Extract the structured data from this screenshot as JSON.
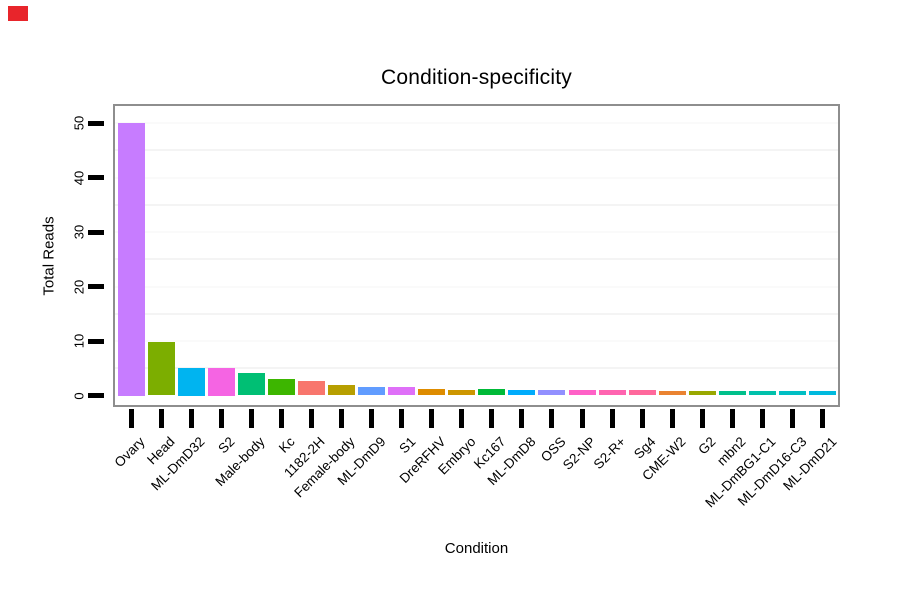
{
  "marker": {
    "name": "red-marker",
    "color": "#e8252b"
  },
  "chart_data": {
    "type": "bar",
    "title": "Condition-specificity",
    "xlabel": "Condition",
    "ylabel": "Total Reads",
    "ylim": [
      0,
      53
    ],
    "y_ticks": [
      0,
      10,
      20,
      30,
      40,
      50
    ],
    "minor_gridlines": [
      5,
      15,
      25,
      35,
      45
    ],
    "grid": "very faint horizontal gridlines on white panel",
    "legend": "none",
    "panel_border_color": "#8e8e8e",
    "categories": [
      "Ovary",
      "Head",
      "ML-DmD32",
      "S2",
      "Male-body",
      "Kc",
      "1182-2H",
      "Female-body",
      "ML-DmD9",
      "S1",
      "DreRFHV",
      "Embryo",
      "Kc167",
      "ML-DmD8",
      "OSS",
      "S2-NP",
      "S2-R+",
      "Sg4",
      "CME-W2",
      "G2",
      "mbn2",
      "ML-DmBG1-C1",
      "ML-DmD16-C3",
      "ML-DmD21"
    ],
    "values": [
      50,
      9.8,
      5.0,
      5.0,
      4.2,
      3.0,
      2.6,
      1.9,
      1.6,
      1.6,
      1.2,
      1.1,
      1.2,
      1.1,
      1.0,
      1.0,
      1.0,
      1.0,
      0.9,
      0.9,
      0.8,
      0.8,
      0.8,
      0.8
    ],
    "bar_colors": [
      "#C77CFF",
      "#7CAE00",
      "#00B4F0",
      "#F564E3",
      "#00BF74",
      "#3DB600",
      "#F8766D",
      "#B79F00",
      "#619CFF",
      "#DF70F8",
      "#DE8C00",
      "#CD9600",
      "#00BA38",
      "#00ACFC",
      "#9290FF",
      "#FF61C7",
      "#FF64B0",
      "#FF689C",
      "#EA8331",
      "#99A800",
      "#00C08B",
      "#00C1AB",
      "#00BFC4",
      "#00BADE"
    ]
  }
}
